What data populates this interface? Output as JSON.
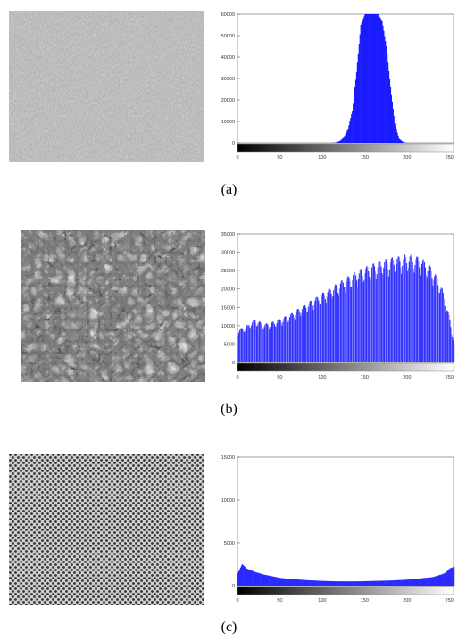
{
  "captions": [
    "(a)",
    "(b)",
    "(c)"
  ],
  "chart_data": [
    {
      "type": "bar",
      "panel": "(a)",
      "title": "",
      "xlabel": "",
      "ylabel": "",
      "xlim": [
        0,
        255
      ],
      "ylim": [
        0,
        60000
      ],
      "x_ticks": [
        0,
        50,
        100,
        150,
        200,
        250
      ],
      "y_ticks": [
        0,
        10000,
        20000,
        30000,
        40000,
        50000,
        60000
      ],
      "bar_color": "#1a1aff",
      "x": [
        110,
        115,
        120,
        125,
        130,
        135,
        140,
        145,
        150,
        155,
        160,
        165,
        170,
        175,
        180,
        185,
        190,
        195,
        200
      ],
      "values": [
        0,
        150,
        800,
        2500,
        6500,
        15000,
        33000,
        55000,
        60000,
        60000,
        60000,
        60000,
        57000,
        45000,
        26000,
        9000,
        2000,
        300,
        0
      ]
    },
    {
      "type": "bar",
      "panel": "(b)",
      "title": "",
      "xlabel": "",
      "ylabel": "",
      "xlim": [
        0,
        255
      ],
      "ylim": [
        0,
        35000
      ],
      "x_ticks": [
        0,
        50,
        100,
        150,
        200,
        250
      ],
      "y_ticks": [
        0,
        5000,
        10000,
        15000,
        20000,
        25000,
        30000,
        35000
      ],
      "bar_color": "#3333ff",
      "x": [
        0,
        10,
        20,
        30,
        40,
        50,
        60,
        70,
        80,
        90,
        100,
        110,
        120,
        130,
        140,
        150,
        160,
        170,
        180,
        190,
        200,
        210,
        220,
        230,
        240,
        250,
        255
      ],
      "values": [
        9000,
        10000,
        12000,
        10500,
        11000,
        12000,
        13000,
        14500,
        16000,
        17500,
        19000,
        20500,
        22000,
        23500,
        25000,
        26000,
        27000,
        28000,
        28500,
        29000,
        29500,
        29000,
        28000,
        25500,
        21000,
        12000,
        5000
      ]
    },
    {
      "type": "bar",
      "panel": "(c)",
      "title": "",
      "xlabel": "",
      "ylabel": "",
      "xlim": [
        0,
        255
      ],
      "ylim": [
        0,
        15000
      ],
      "x_ticks": [
        0,
        50,
        100,
        150,
        200,
        250
      ],
      "y_ticks": [
        0,
        5000,
        10000,
        15000
      ],
      "bar_color": "#2a2aff",
      "x": [
        0,
        5,
        10,
        15,
        20,
        30,
        40,
        50,
        60,
        80,
        100,
        120,
        140,
        160,
        180,
        200,
        210,
        220,
        230,
        240,
        245,
        250,
        255
      ],
      "values": [
        1500,
        2500,
        2000,
        1800,
        1600,
        1300,
        1100,
        900,
        800,
        650,
        550,
        500,
        500,
        550,
        600,
        700,
        800,
        900,
        1000,
        1300,
        1500,
        2000,
        2200
      ]
    }
  ]
}
